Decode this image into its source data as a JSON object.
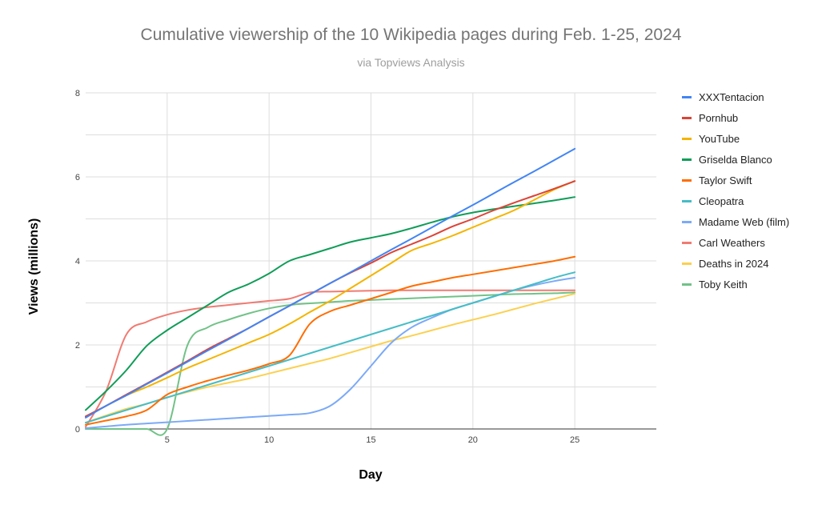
{
  "chart_data": {
    "type": "line",
    "title": "Cumulative viewership of the 10 Wikipedia pages during Feb. 1-25, 2024",
    "subtitle": "via Topviews Analysis",
    "xlabel": "Day",
    "ylabel": "Views (millions)",
    "xlim": [
      1,
      29
    ],
    "ylim": [
      0,
      8
    ],
    "xticks": [
      5,
      10,
      15,
      20,
      25
    ],
    "yticks": [
      0,
      2,
      4,
      6,
      8
    ],
    "grid": true,
    "legend_position": "right",
    "x": [
      1,
      2,
      3,
      4,
      5,
      6,
      7,
      8,
      9,
      10,
      11,
      12,
      13,
      14,
      15,
      16,
      17,
      18,
      19,
      20,
      21,
      22,
      23,
      24,
      25
    ],
    "series": [
      {
        "name": "XXXTentacion",
        "color": "#4285f4",
        "values": [
          0.27,
          0.55,
          0.8,
          1.07,
          1.33,
          1.6,
          1.87,
          2.13,
          2.4,
          2.67,
          2.93,
          3.2,
          3.47,
          3.73,
          4.0,
          4.27,
          4.53,
          4.8,
          5.07,
          5.33,
          5.6,
          5.87,
          6.13,
          6.4,
          6.67
        ]
      },
      {
        "name": "Pornhub",
        "color": "#db4437",
        "values": [
          0.3,
          0.55,
          0.82,
          1.08,
          1.35,
          1.62,
          1.9,
          2.15,
          2.4,
          2.67,
          2.93,
          3.2,
          3.47,
          3.72,
          3.95,
          4.2,
          4.4,
          4.6,
          4.82,
          5.0,
          5.2,
          5.38,
          5.55,
          5.72,
          5.9
        ]
      },
      {
        "name": "YouTube",
        "color": "#f4b400",
        "values": [
          0.3,
          0.55,
          0.8,
          1.0,
          1.22,
          1.45,
          1.65,
          1.85,
          2.05,
          2.25,
          2.5,
          2.78,
          3.05,
          3.35,
          3.65,
          3.95,
          4.25,
          4.42,
          4.6,
          4.8,
          5.0,
          5.2,
          5.45,
          5.7,
          5.9
        ]
      },
      {
        "name": "Griselda Blanco",
        "color": "#0f9d58",
        "values": [
          0.45,
          0.9,
          1.4,
          1.98,
          2.35,
          2.65,
          2.95,
          3.25,
          3.45,
          3.7,
          4.0,
          4.15,
          4.3,
          4.45,
          4.55,
          4.65,
          4.78,
          4.92,
          5.05,
          5.15,
          5.23,
          5.3,
          5.37,
          5.44,
          5.52
        ]
      },
      {
        "name": "Taylor Swift",
        "color": "#ff6d01",
        "values": [
          0.1,
          0.2,
          0.3,
          0.45,
          0.82,
          1.0,
          1.15,
          1.28,
          1.4,
          1.55,
          1.75,
          2.5,
          2.8,
          2.95,
          3.1,
          3.25,
          3.4,
          3.5,
          3.6,
          3.68,
          3.76,
          3.84,
          3.92,
          4.0,
          4.1
        ]
      },
      {
        "name": "Cleopatra",
        "color": "#46bdc6",
        "values": [
          0.15,
          0.3,
          0.45,
          0.6,
          0.75,
          0.9,
          1.05,
          1.2,
          1.35,
          1.5,
          1.65,
          1.8,
          1.95,
          2.1,
          2.25,
          2.4,
          2.55,
          2.7,
          2.85,
          3.0,
          3.15,
          3.3,
          3.45,
          3.6,
          3.73
        ]
      },
      {
        "name": "Madame Web (film)",
        "color": "#7baaf7",
        "values": [
          0.02,
          0.06,
          0.1,
          0.13,
          0.16,
          0.19,
          0.22,
          0.25,
          0.28,
          0.31,
          0.34,
          0.38,
          0.55,
          0.95,
          1.5,
          2.05,
          2.42,
          2.65,
          2.85,
          3.0,
          3.15,
          3.3,
          3.42,
          3.52,
          3.6
        ]
      },
      {
        "name": "Carl Weathers",
        "color": "#f07b72",
        "values": [
          0.05,
          0.9,
          2.25,
          2.55,
          2.72,
          2.83,
          2.9,
          2.95,
          3.0,
          3.05,
          3.1,
          3.25,
          3.27,
          3.28,
          3.29,
          3.3,
          3.3,
          3.3,
          3.3,
          3.3,
          3.3,
          3.3,
          3.3,
          3.3,
          3.3
        ]
      },
      {
        "name": "Deaths in 2024",
        "color": "#fcd04f",
        "values": [
          0.15,
          0.32,
          0.48,
          0.6,
          0.75,
          0.88,
          1.0,
          1.1,
          1.2,
          1.32,
          1.44,
          1.56,
          1.68,
          1.82,
          1.96,
          2.1,
          2.22,
          2.35,
          2.48,
          2.6,
          2.72,
          2.85,
          2.98,
          3.1,
          3.22
        ]
      },
      {
        "name": "Toby Keith",
        "color": "#71c287",
        "values": [
          0,
          0,
          0,
          0,
          0,
          2.0,
          2.42,
          2.6,
          2.75,
          2.87,
          2.95,
          2.99,
          3.02,
          3.05,
          3.07,
          3.09,
          3.11,
          3.13,
          3.15,
          3.17,
          3.19,
          3.21,
          3.22,
          3.23,
          3.25
        ]
      }
    ]
  }
}
